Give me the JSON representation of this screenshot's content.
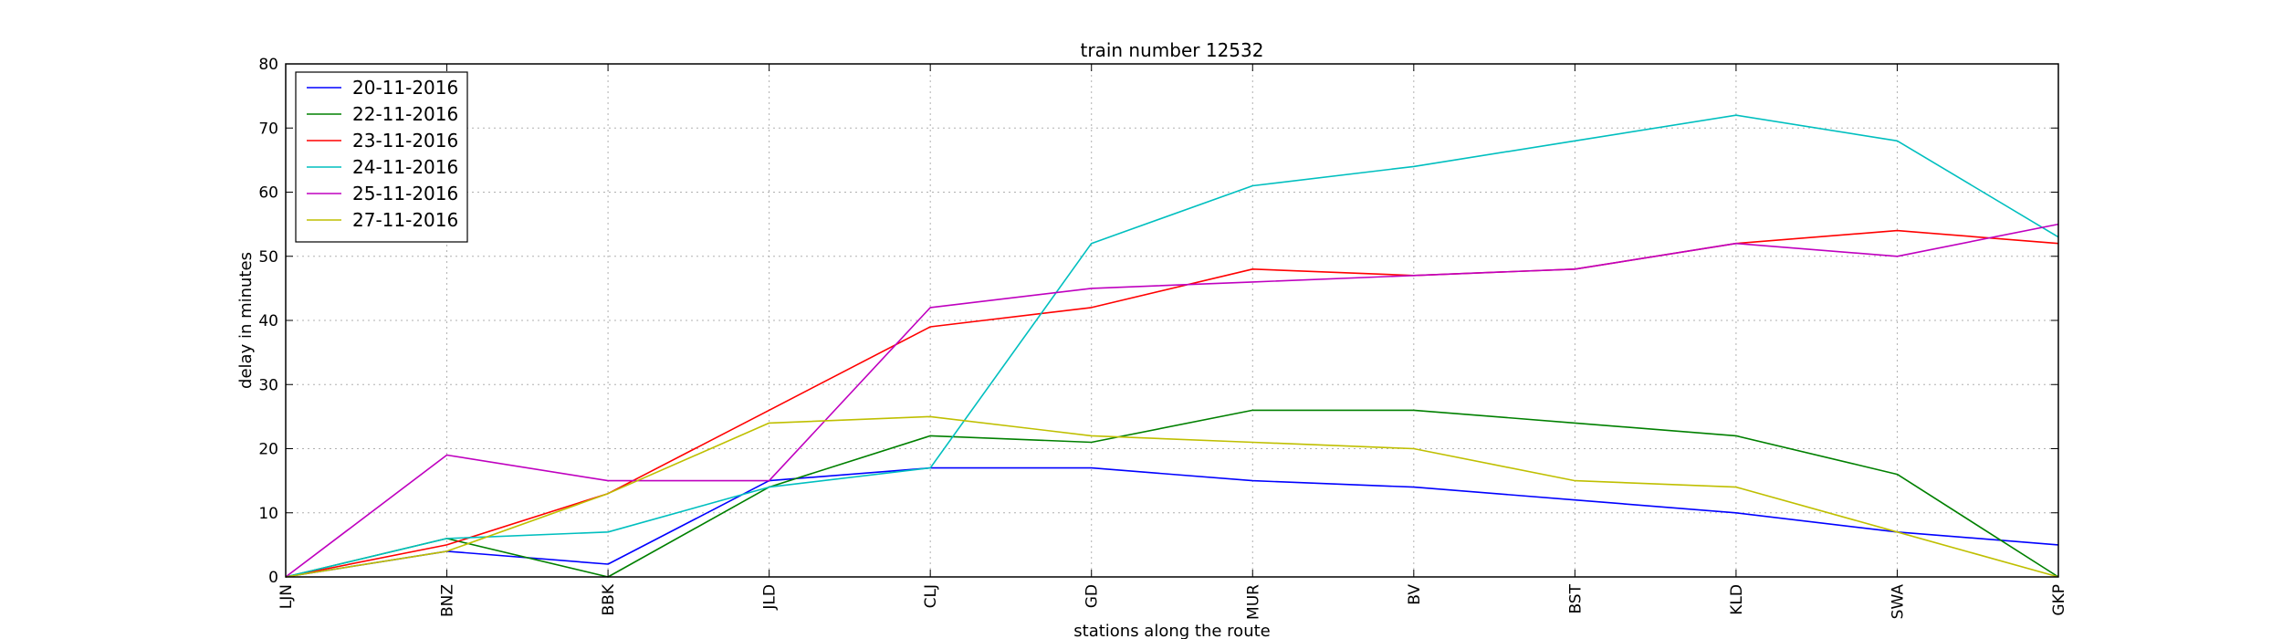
{
  "chart_data": {
    "type": "line",
    "title": "train number 12532",
    "xlabel": "stations along the route",
    "ylabel": "delay in minutes",
    "categories": [
      "LJN",
      "BNZ",
      "BBK",
      "JLD",
      "CLJ",
      "GD",
      "MUR",
      "BV",
      "BST",
      "KLD",
      "SWA",
      "GKP"
    ],
    "ylim": [
      0,
      80
    ],
    "yticks": [
      "0",
      "10",
      "20",
      "30",
      "40",
      "50",
      "60",
      "70",
      "80"
    ],
    "grid": true,
    "legend_position": "top-left",
    "series": [
      {
        "name": "20-11-2016",
        "color": "#0000ff",
        "values": [
          0,
          4,
          2,
          15,
          17,
          17,
          15,
          14,
          12,
          10,
          7,
          5
        ]
      },
      {
        "name": "22-11-2016",
        "color": "#008000",
        "values": [
          0,
          6,
          0,
          14,
          22,
          21,
          26,
          26,
          24,
          22,
          16,
          0
        ]
      },
      {
        "name": "23-11-2016",
        "color": "#ff0000",
        "values": [
          0,
          5,
          13,
          26,
          39,
          42,
          48,
          47,
          48,
          52,
          54,
          52
        ]
      },
      {
        "name": "24-11-2016",
        "color": "#00bfbf",
        "values": [
          0,
          6,
          7,
          14,
          17,
          52,
          61,
          64,
          68,
          72,
          68,
          53
        ]
      },
      {
        "name": "25-11-2016",
        "color": "#bf00bf",
        "values": [
          0,
          19,
          15,
          15,
          42,
          45,
          46,
          47,
          48,
          52,
          50,
          55
        ]
      },
      {
        "name": "27-11-2016",
        "color": "#bfbf00",
        "values": [
          0,
          4,
          13,
          24,
          25,
          22,
          21,
          20,
          15,
          14,
          7,
          0
        ]
      }
    ]
  }
}
